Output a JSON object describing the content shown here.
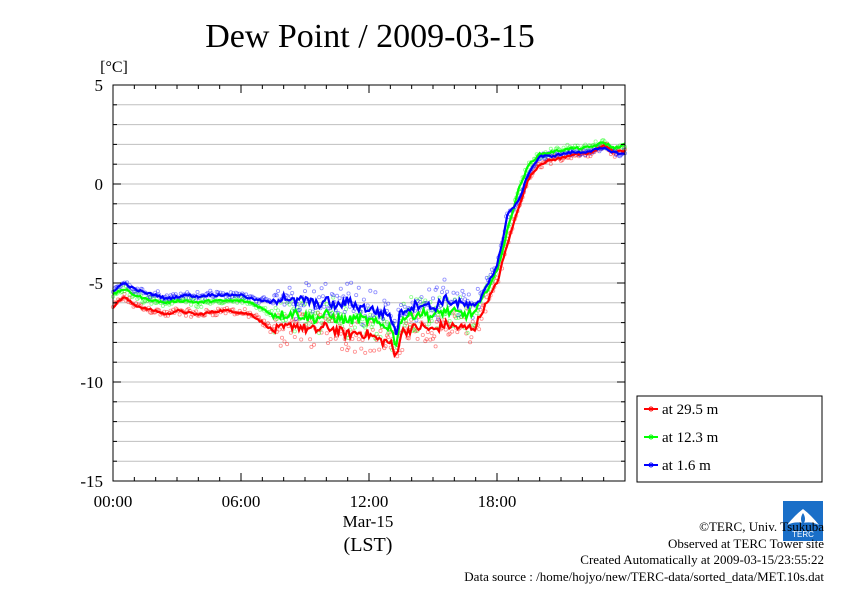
{
  "chart_data": {
    "type": "line",
    "title": "Dew Point / 2009-03-15",
    "ylabel": "[°C]",
    "xlabel": "(LST)",
    "x_date_label": "Mar-15",
    "ylim": [
      -15,
      5
    ],
    "y_ticks": [
      5,
      0,
      -5,
      -10,
      -15
    ],
    "y_tick_labels": [
      "5",
      "0",
      "-5",
      "-10",
      "-15"
    ],
    "xlim_hours": [
      0,
      24
    ],
    "x_ticks_hours": [
      0,
      6,
      12,
      18
    ],
    "x_tick_labels": [
      "00:00",
      "06:00",
      "12:00",
      "18:00"
    ],
    "grid": true,
    "legend_position": "bottom-right, outside plot",
    "x_hours": [
      0,
      0.5,
      1,
      1.5,
      2,
      2.5,
      3,
      3.5,
      4,
      4.5,
      5,
      5.5,
      6,
      6.5,
      7,
      7.5,
      8,
      8.5,
      9,
      9.5,
      10,
      10.5,
      11,
      11.5,
      12,
      12.5,
      13,
      13.25,
      13.5,
      14,
      14.5,
      15,
      15.5,
      16,
      16.5,
      17,
      17.5,
      18,
      18.5,
      19,
      19.5,
      20,
      20.5,
      21,
      21.5,
      22,
      22.5,
      23,
      23.5,
      24
    ],
    "series": [
      {
        "name": "at 29.5 m",
        "color": "#ff0000",
        "values": [
          -6.2,
          -5.7,
          -6.1,
          -6.3,
          -6.4,
          -6.6,
          -6.4,
          -6.5,
          -6.6,
          -6.5,
          -6.4,
          -6.4,
          -6.5,
          -6.6,
          -7.0,
          -7.4,
          -7.3,
          -7.1,
          -7.3,
          -7.4,
          -7.2,
          -7.4,
          -7.6,
          -7.5,
          -7.6,
          -7.9,
          -8.0,
          -8.8,
          -7.5,
          -7.3,
          -7.2,
          -7.4,
          -7.1,
          -7.2,
          -7.3,
          -7.2,
          -6.0,
          -5.0,
          -3.0,
          -1.2,
          0.3,
          1.0,
          1.2,
          1.3,
          1.5,
          1.5,
          1.6,
          2.0,
          1.6,
          1.7
        ]
      },
      {
        "name": "at 12.3 m",
        "color": "#00ff00",
        "values": [
          -5.6,
          -5.3,
          -5.6,
          -5.8,
          -5.9,
          -6.0,
          -5.9,
          -5.9,
          -6.0,
          -5.9,
          -5.9,
          -5.9,
          -5.9,
          -6.0,
          -6.3,
          -6.6,
          -6.6,
          -6.5,
          -6.7,
          -6.8,
          -6.6,
          -6.8,
          -6.9,
          -6.8,
          -6.9,
          -7.1,
          -7.2,
          -8.1,
          -6.8,
          -6.6,
          -6.5,
          -6.7,
          -6.4,
          -6.5,
          -6.6,
          -6.5,
          -5.4,
          -4.4,
          -2.3,
          -0.3,
          1.0,
          1.5,
          1.6,
          1.7,
          1.8,
          1.8,
          1.9,
          2.1,
          1.8,
          2.0
        ]
      },
      {
        "name": "at 1.6 m",
        "color": "#0000ff",
        "values": [
          -5.4,
          -5.0,
          -5.3,
          -5.5,
          -5.6,
          -5.8,
          -5.7,
          -5.6,
          -5.7,
          -5.6,
          -5.6,
          -5.6,
          -5.6,
          -5.8,
          -5.9,
          -6.0,
          -5.6,
          -6.0,
          -5.8,
          -6.1,
          -5.9,
          -6.2,
          -5.9,
          -6.2,
          -6.3,
          -6.5,
          -6.6,
          -7.6,
          -6.4,
          -6.2,
          -6.0,
          -6.3,
          -5.8,
          -6.0,
          -6.1,
          -6.3,
          -5.1,
          -4.2,
          -1.5,
          -0.9,
          0.6,
          1.4,
          1.4,
          1.5,
          1.6,
          1.6,
          1.7,
          1.8,
          1.6,
          1.5
        ]
      }
    ]
  },
  "footer": {
    "copyright": "©TERC, Univ. Tsukuba",
    "observed": "Observed at TERC Tower site",
    "created": "Created Automatically at 2009-03-15/23:55:22",
    "source": "Data source : /home/hojyo/new/TERC-data/sorted_data/MET.10s.dat"
  },
  "logo": {
    "text": "TERC",
    "color": "#1a6fc8"
  }
}
